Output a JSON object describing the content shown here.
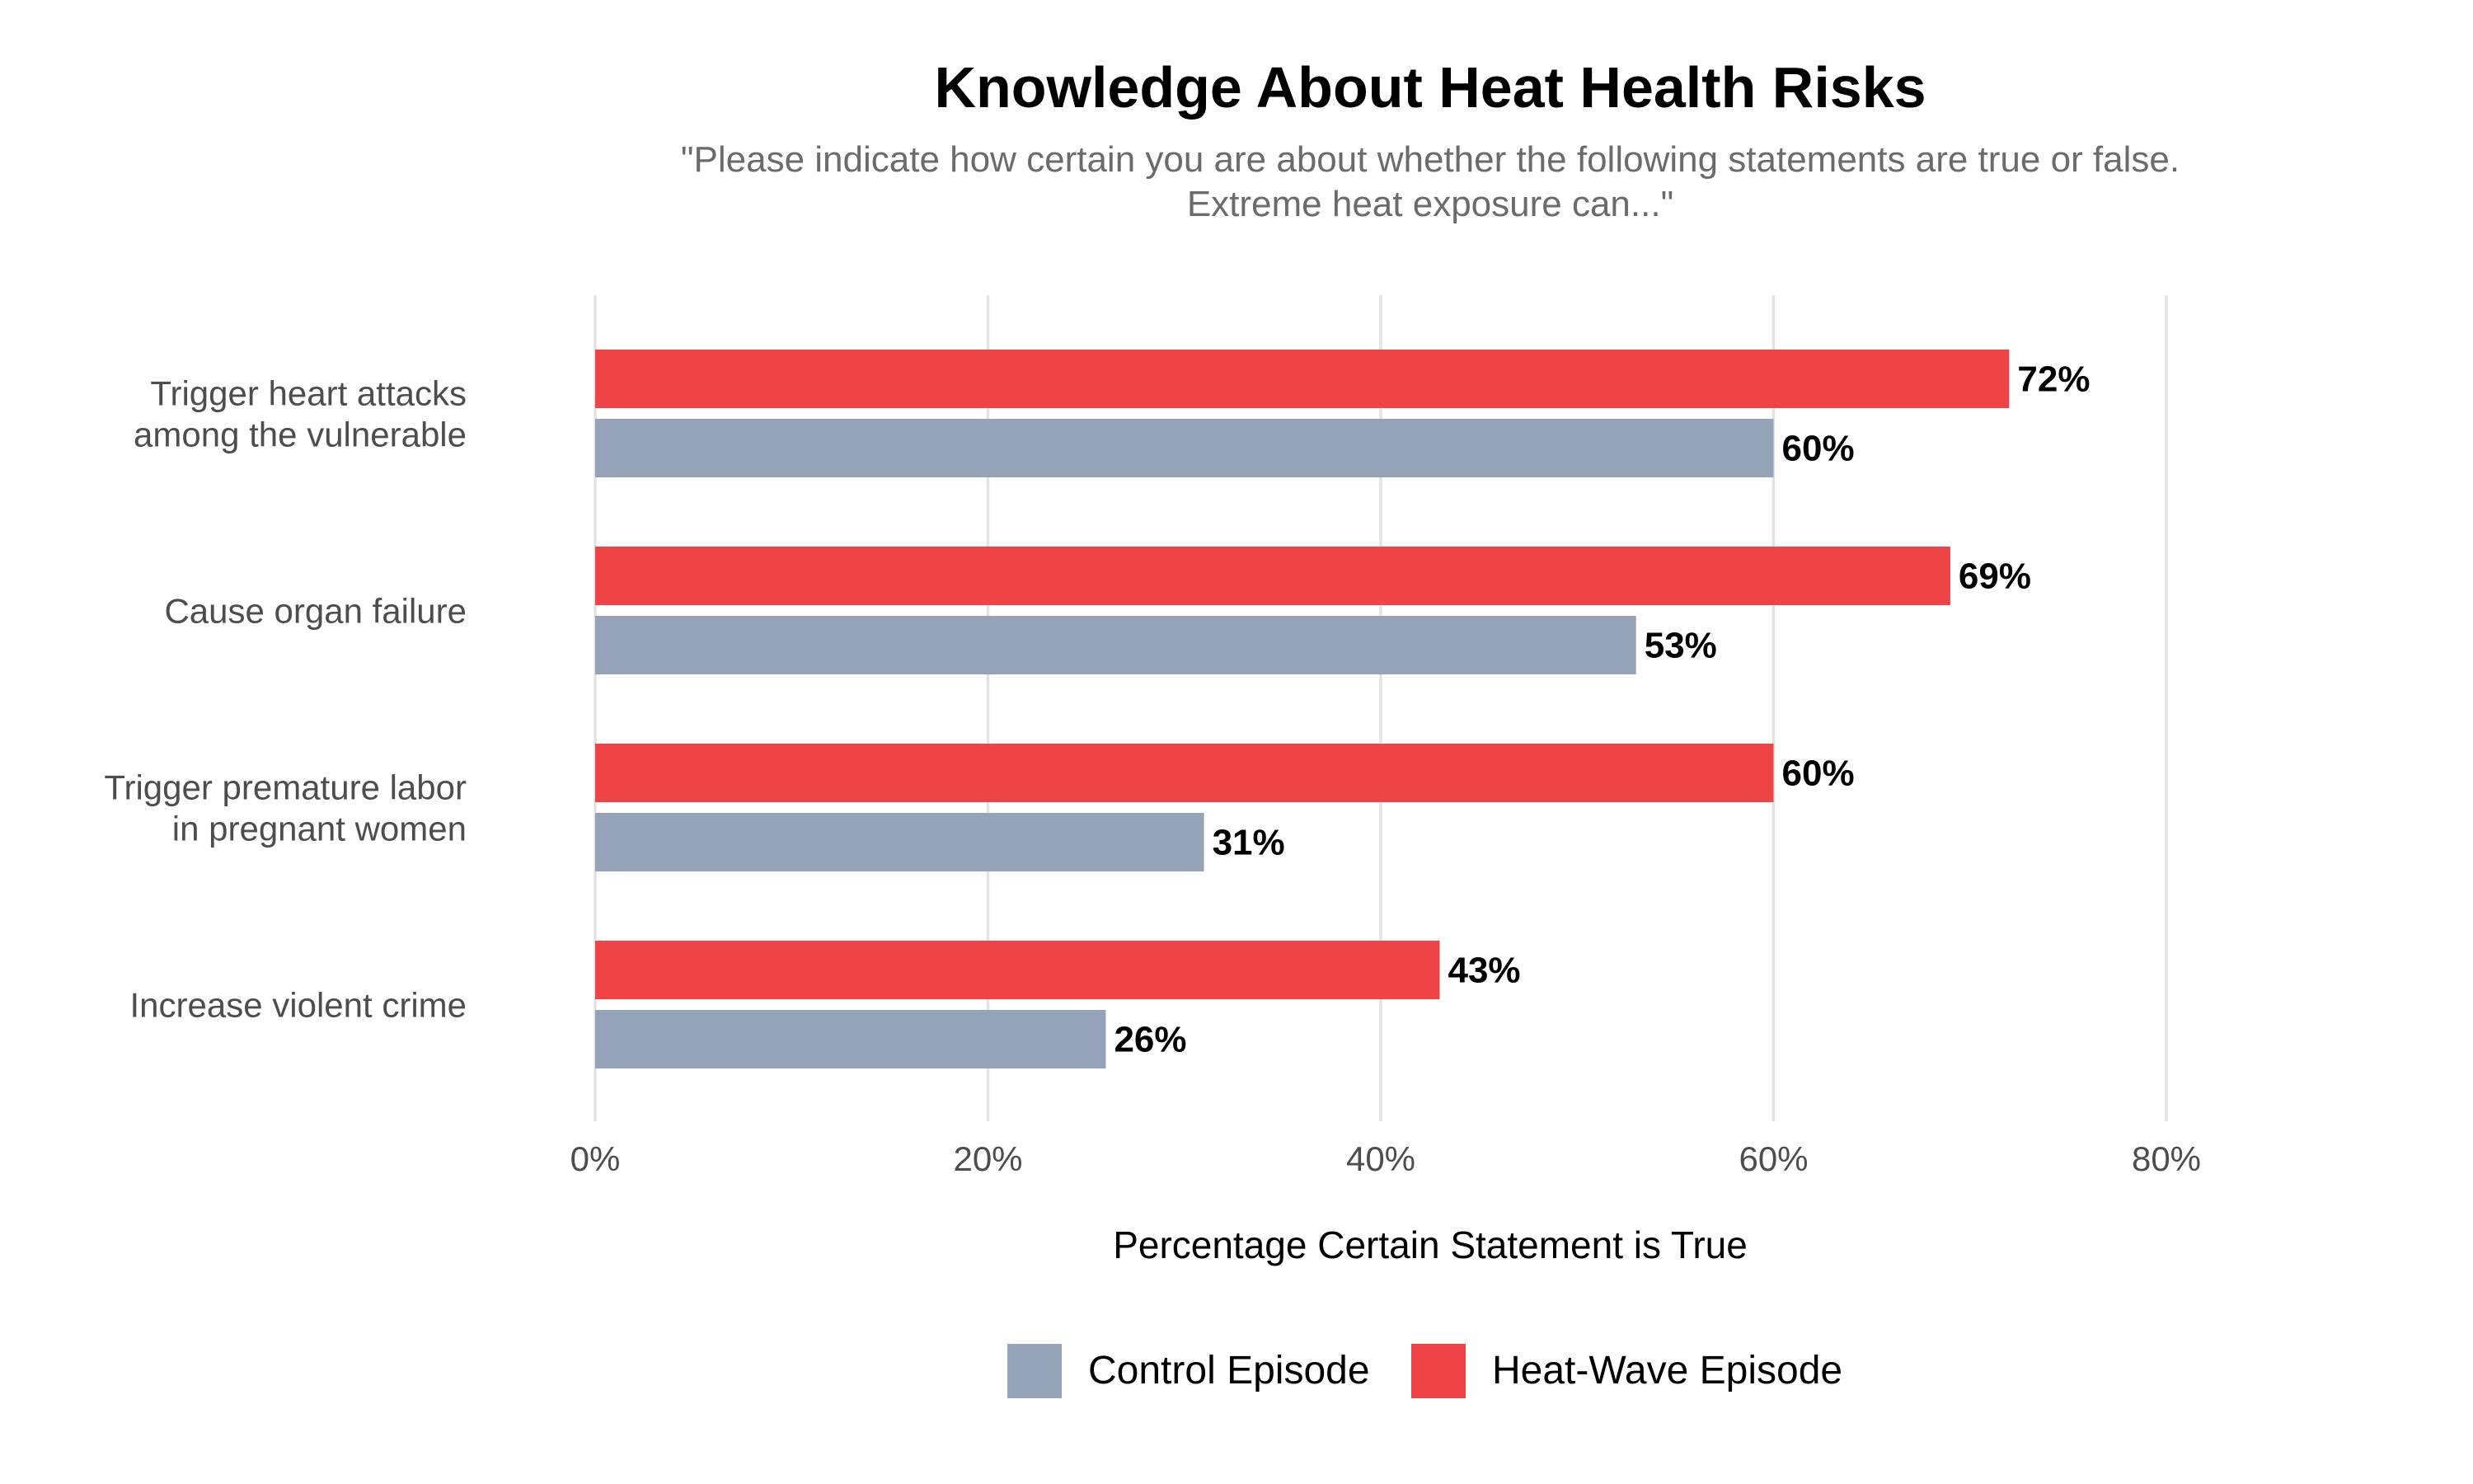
{
  "chart_data": {
    "type": "bar",
    "orientation": "horizontal",
    "title": "Knowledge About Heat Health Risks",
    "subtitle_lines": [
      "\"Please indicate how certain you are about whether the following statements are true or false.",
      "Extreme heat exposure can...\""
    ],
    "xlabel": "Percentage Certain Statement is True",
    "xlim": [
      0,
      80
    ],
    "xticks": [
      0,
      20,
      40,
      60,
      80
    ],
    "xtick_labels": [
      "0%",
      "20%",
      "40%",
      "60%",
      "80%"
    ],
    "grid": true,
    "legend_position": "bottom",
    "categories": [
      [
        "Trigger heart attacks",
        "among the vulnerable"
      ],
      [
        "Cause organ failure"
      ],
      [
        "Trigger premature labor",
        "in pregnant women"
      ],
      [
        "Increase violent crime"
      ]
    ],
    "series": [
      {
        "name": "Heat-Wave Episode",
        "color": "#ef4446",
        "values": [
          72,
          69,
          60,
          43
        ],
        "labels": [
          "72%",
          "69%",
          "60%",
          "43%"
        ]
      },
      {
        "name": "Control Episode",
        "color": "#94a3b8",
        "values": [
          60,
          53,
          31,
          26
        ],
        "labels": [
          "60%",
          "53%",
          "31%",
          "26%"
        ]
      }
    ],
    "legend_order": [
      "Control Episode",
      "Heat-Wave Episode"
    ]
  }
}
